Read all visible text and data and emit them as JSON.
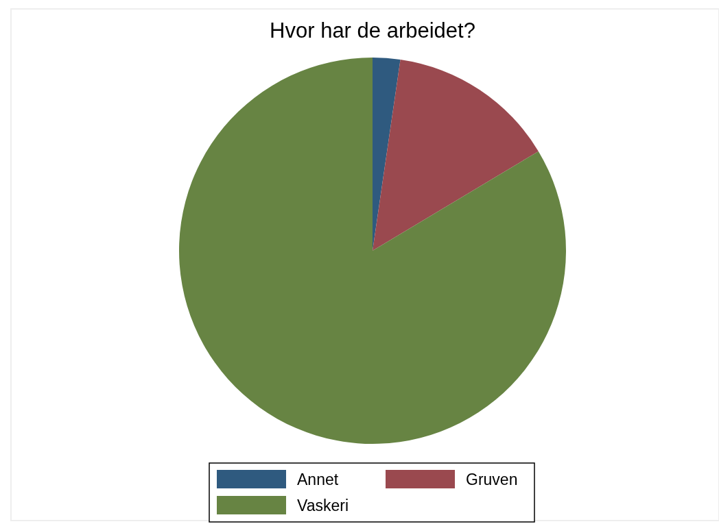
{
  "chart_data": {
    "type": "pie",
    "title": "Hvor har de arbeidet?",
    "categories": [
      "Annet",
      "Gruven",
      "Vaskeri"
    ],
    "values": [
      2.3,
      14.1,
      83.6
    ],
    "colors": [
      "#2f5a7f",
      "#9a494f",
      "#678443"
    ],
    "legend": "bottom"
  }
}
